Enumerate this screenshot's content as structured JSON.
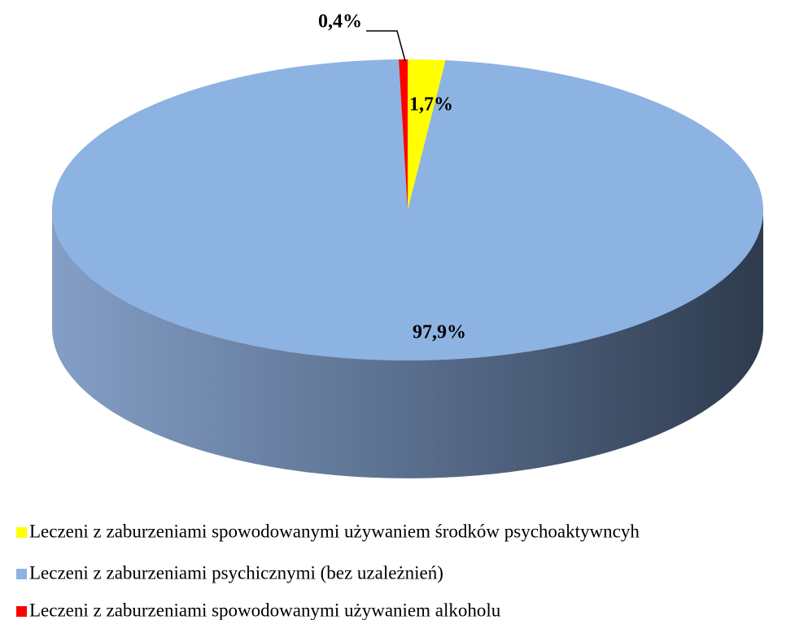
{
  "chart_data": {
    "type": "pie",
    "categories": [
      "Leczeni z zaburzeniami spowodowanymi używaniem środków psychoaktywncyh",
      "Leczeni z zaburzeniami psychicznymi (bez uzależnień)",
      "Leczeni z zaburzeniami spowodowanymi używaniem alkoholu"
    ],
    "values": [
      1.7,
      97.9,
      0.4
    ],
    "value_labels": [
      "1,7%",
      "97,9%",
      "0,4%"
    ],
    "colors": [
      "#ffff00",
      "#8db3e2",
      "#ff0000"
    ],
    "legend": "bottom"
  }
}
